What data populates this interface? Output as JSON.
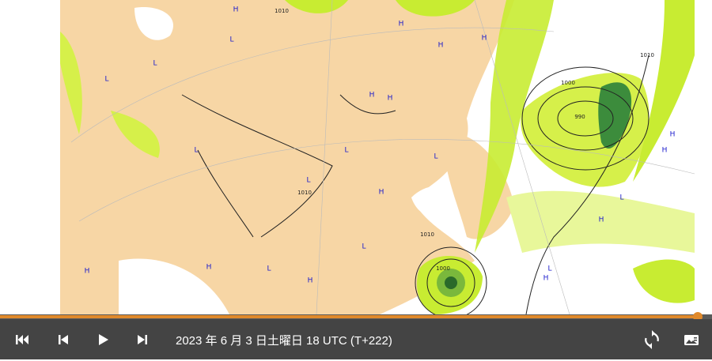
{
  "player": {
    "timestamp": "2023 年 6 月 3 日土曜日 18 UTC (T+222)"
  },
  "map": {
    "labels": [
      "H",
      "H",
      "H",
      "H",
      "L",
      "L",
      "L",
      "H",
      "H",
      "L",
      "L",
      "L",
      "H",
      "L",
      "H",
      "L",
      "H",
      "H",
      "H",
      "H",
      "L",
      "H",
      "L",
      "H",
      "L",
      "1010",
      "1000",
      "990",
      "1010",
      "1000",
      "1010",
      "1010"
    ]
  }
}
